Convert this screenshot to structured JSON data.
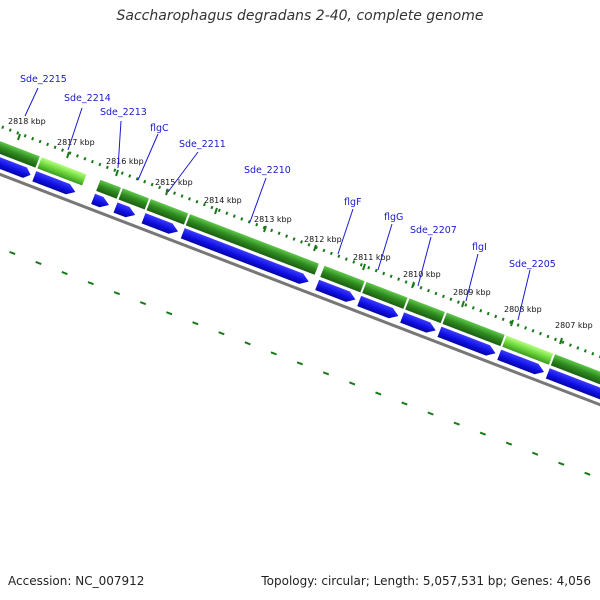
{
  "title": "Saccharophagus degradans 2-40, complete genome",
  "footer": {
    "accession": "Accession: NC_007912",
    "summary": "Topology: circular; Length: 5,057,531 bp; Genes: 4,056"
  },
  "colors": {
    "cds_dark": "#2e7f1e",
    "cds_mid": "#3aa02a",
    "cds_light": "#7de84f",
    "gene_blue": "#1010e6",
    "label_blue": "#1a1acd",
    "backbone": "#888888",
    "tick_green": "#1a7a1a"
  },
  "kbp_labels": [
    "2818 kbp",
    "2817 kbp",
    "2816 kbp",
    "2815 kbp",
    "2814 kbp",
    "2813 kbp",
    "2812 kbp",
    "2811 kbp",
    "2810 kbp",
    "2809 kbp",
    "2808 kbp",
    "2807 kbp"
  ],
  "gene_labels": [
    "Sde_2215",
    "Sde_2214",
    "Sde_2213",
    "flgC",
    "Sde_2211",
    "Sde_2210",
    "flgF",
    "flgG",
    "Sde_2207",
    "flgI",
    "Sde_2205"
  ]
}
